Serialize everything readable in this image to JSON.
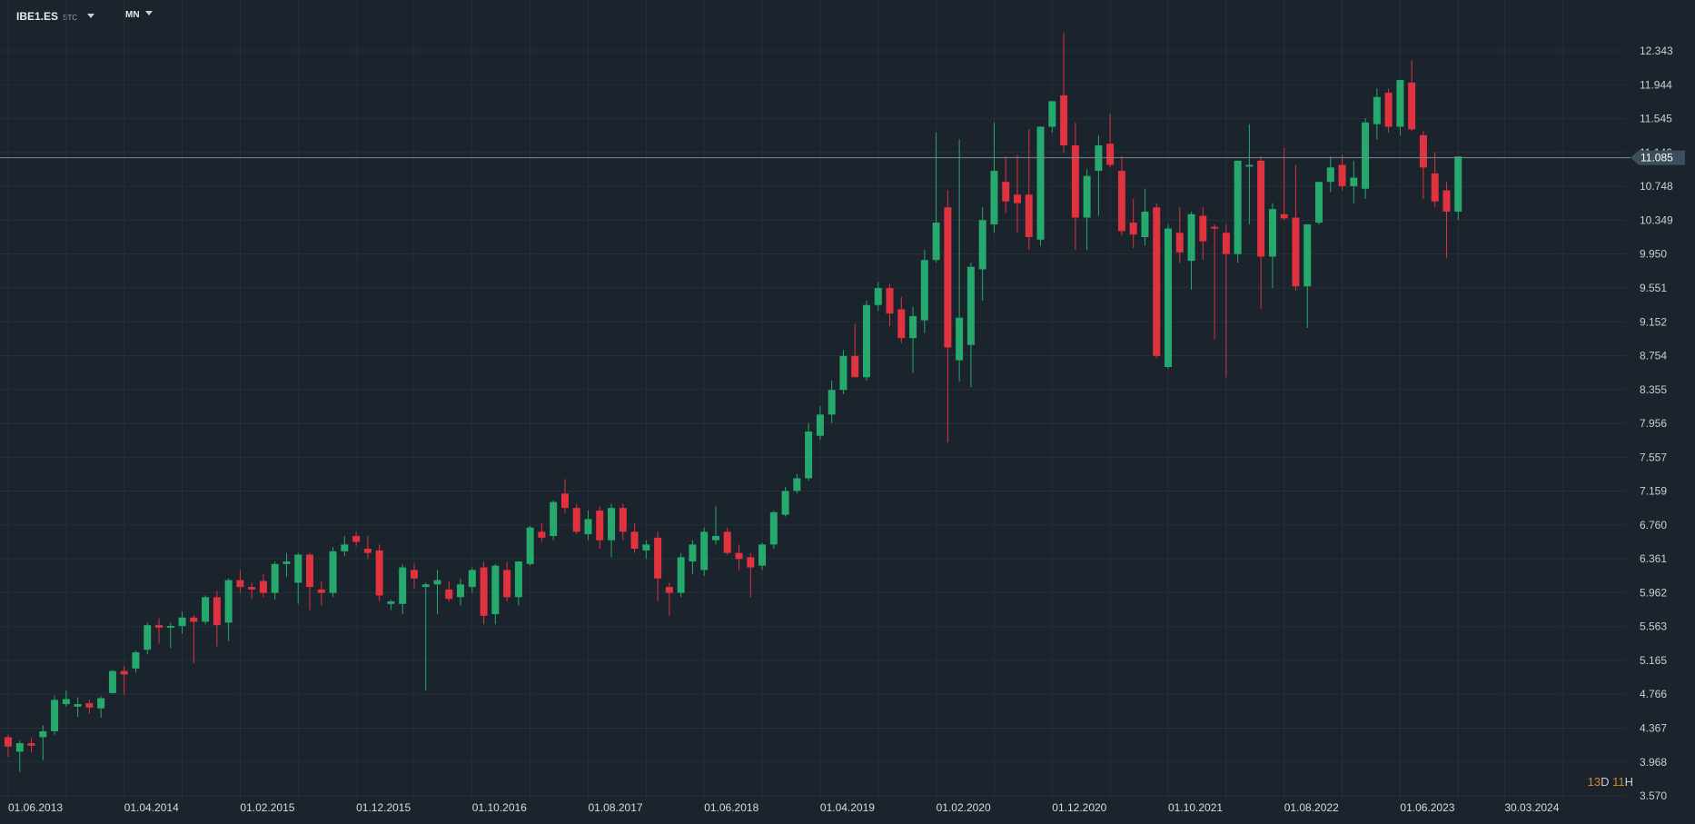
{
  "header": {
    "symbol": "IBE1.ES",
    "symbol_suffix": "STC",
    "timeframe": "MN"
  },
  "countdown": {
    "days": "13",
    "day_unit": "D",
    "hours": "11",
    "hour_unit": "H"
  },
  "colors": {
    "up": "#26a96c",
    "down": "#e0323f",
    "grid": "#253039",
    "background": "#1b232c"
  },
  "chart_data": {
    "type": "candlestick",
    "title": "",
    "xlabel": "",
    "ylabel": "",
    "x_ticks": [
      "01.06.2013",
      "01.04.2014",
      "01.02.2015",
      "01.12.2015",
      "01.10.2016",
      "01.08.2017",
      "01.06.2018",
      "01.04.2019",
      "01.02.2020",
      "01.12.2020",
      "01.10.2021",
      "01.08.2022",
      "01.06.2023",
      "30.03.2024"
    ],
    "y_ticks": [
      "12.343",
      "11.944",
      "11.545",
      "11.146",
      "10.748",
      "10.349",
      "9.950",
      "9.551",
      "9.152",
      "8.754",
      "8.355",
      "7.956",
      "7.557",
      "7.159",
      "6.760",
      "6.361",
      "5.962",
      "5.563",
      "5.165",
      "4.766",
      "4.367",
      "3.968",
      "3.570"
    ],
    "ylim": [
      3.57,
      12.343
    ],
    "current_price": "11.085",
    "current_price_value": 11.085,
    "start": "01.06.2013",
    "series": [
      {
        "date": "01.06.2013",
        "o": 4.26,
        "h": 4.29,
        "l": 4.03,
        "c": 4.15
      },
      {
        "date": "01.07.2013",
        "o": 4.09,
        "h": 4.22,
        "l": 3.85,
        "c": 4.19
      },
      {
        "date": "01.08.2013",
        "o": 4.19,
        "h": 4.25,
        "l": 4.08,
        "c": 4.16
      },
      {
        "date": "01.09.2013",
        "o": 4.26,
        "h": 4.4,
        "l": 3.99,
        "c": 4.33
      },
      {
        "date": "01.10.2013",
        "o": 4.33,
        "h": 4.75,
        "l": 4.29,
        "c": 4.7
      },
      {
        "date": "01.11.2013",
        "o": 4.65,
        "h": 4.81,
        "l": 4.62,
        "c": 4.71
      },
      {
        "date": "01.12.2013",
        "o": 4.62,
        "h": 4.73,
        "l": 4.5,
        "c": 4.65
      },
      {
        "date": "01.01.2014",
        "o": 4.66,
        "h": 4.7,
        "l": 4.54,
        "c": 4.61
      },
      {
        "date": "01.02.2014",
        "o": 4.6,
        "h": 4.74,
        "l": 4.49,
        "c": 4.72
      },
      {
        "date": "01.03.2014",
        "o": 4.78,
        "h": 5.05,
        "l": 4.77,
        "c": 5.04
      },
      {
        "date": "01.04.2014",
        "o": 5.04,
        "h": 5.1,
        "l": 4.76,
        "c": 5.0
      },
      {
        "date": "01.05.2014",
        "o": 5.07,
        "h": 5.28,
        "l": 5.02,
        "c": 5.26
      },
      {
        "date": "01.06.2014",
        "o": 5.29,
        "h": 5.61,
        "l": 5.24,
        "c": 5.58
      },
      {
        "date": "01.07.2014",
        "o": 5.58,
        "h": 5.66,
        "l": 5.36,
        "c": 5.55
      },
      {
        "date": "01.08.2014",
        "o": 5.55,
        "h": 5.61,
        "l": 5.31,
        "c": 5.57
      },
      {
        "date": "01.09.2014",
        "o": 5.57,
        "h": 5.74,
        "l": 5.48,
        "c": 5.67
      },
      {
        "date": "01.10.2014",
        "o": 5.67,
        "h": 5.7,
        "l": 5.13,
        "c": 5.62
      },
      {
        "date": "01.11.2014",
        "o": 5.62,
        "h": 5.93,
        "l": 5.59,
        "c": 5.91
      },
      {
        "date": "01.12.2014",
        "o": 5.91,
        "h": 5.98,
        "l": 5.33,
        "c": 5.58
      },
      {
        "date": "01.01.2015",
        "o": 5.61,
        "h": 6.13,
        "l": 5.39,
        "c": 6.11
      },
      {
        "date": "01.02.2015",
        "o": 6.11,
        "h": 6.23,
        "l": 5.96,
        "c": 6.03
      },
      {
        "date": "01.03.2015",
        "o": 6.03,
        "h": 6.08,
        "l": 5.89,
        "c": 6.0
      },
      {
        "date": "01.04.2015",
        "o": 6.1,
        "h": 6.18,
        "l": 5.91,
        "c": 5.96
      },
      {
        "date": "01.05.2015",
        "o": 5.96,
        "h": 6.33,
        "l": 5.88,
        "c": 6.3
      },
      {
        "date": "01.06.2015",
        "o": 6.3,
        "h": 6.43,
        "l": 6.15,
        "c": 6.33
      },
      {
        "date": "01.07.2015",
        "o": 6.08,
        "h": 6.43,
        "l": 5.83,
        "c": 6.41
      },
      {
        "date": "01.08.2015",
        "o": 6.41,
        "h": 6.43,
        "l": 5.76,
        "c": 6.03
      },
      {
        "date": "01.09.2015",
        "o": 6.0,
        "h": 6.1,
        "l": 5.81,
        "c": 5.96
      },
      {
        "date": "01.10.2015",
        "o": 5.96,
        "h": 6.5,
        "l": 5.91,
        "c": 6.45
      },
      {
        "date": "01.11.2015",
        "o": 6.45,
        "h": 6.63,
        "l": 6.39,
        "c": 6.53
      },
      {
        "date": "01.12.2015",
        "o": 6.63,
        "h": 6.68,
        "l": 6.51,
        "c": 6.56
      },
      {
        "date": "01.01.2016",
        "o": 6.48,
        "h": 6.63,
        "l": 6.36,
        "c": 6.43
      },
      {
        "date": "01.02.2016",
        "o": 6.46,
        "h": 6.53,
        "l": 5.86,
        "c": 5.93
      },
      {
        "date": "01.03.2016",
        "o": 5.83,
        "h": 5.88,
        "l": 5.76,
        "c": 5.86
      },
      {
        "date": "01.04.2016",
        "o": 5.83,
        "h": 6.3,
        "l": 5.71,
        "c": 6.26
      },
      {
        "date": "01.05.2016",
        "o": 6.23,
        "h": 6.3,
        "l": 6.01,
        "c": 6.13
      },
      {
        "date": "01.06.2016",
        "o": 6.03,
        "h": 6.08,
        "l": 4.81,
        "c": 6.06
      },
      {
        "date": "01.07.2016",
        "o": 6.06,
        "h": 6.23,
        "l": 5.71,
        "c": 6.11
      },
      {
        "date": "01.08.2016",
        "o": 6.0,
        "h": 6.1,
        "l": 5.86,
        "c": 5.89
      },
      {
        "date": "01.09.2016",
        "o": 5.91,
        "h": 6.13,
        "l": 5.81,
        "c": 6.06
      },
      {
        "date": "01.10.2016",
        "o": 6.03,
        "h": 6.26,
        "l": 5.96,
        "c": 6.23
      },
      {
        "date": "01.11.2016",
        "o": 6.26,
        "h": 6.33,
        "l": 5.59,
        "c": 5.69
      },
      {
        "date": "01.12.2016",
        "o": 5.71,
        "h": 6.3,
        "l": 5.59,
        "c": 6.28
      },
      {
        "date": "01.01.2017",
        "o": 6.23,
        "h": 6.33,
        "l": 5.86,
        "c": 5.91
      },
      {
        "date": "01.02.2017",
        "o": 5.91,
        "h": 6.3,
        "l": 5.81,
        "c": 6.33
      },
      {
        "date": "01.03.2017",
        "o": 6.3,
        "h": 6.75,
        "l": 6.28,
        "c": 6.73
      },
      {
        "date": "01.04.2017",
        "o": 6.68,
        "h": 6.78,
        "l": 6.56,
        "c": 6.61
      },
      {
        "date": "01.05.2017",
        "o": 6.63,
        "h": 7.05,
        "l": 6.58,
        "c": 7.03
      },
      {
        "date": "01.06.2017",
        "o": 7.13,
        "h": 7.3,
        "l": 6.9,
        "c": 6.96
      },
      {
        "date": "01.07.2017",
        "o": 6.96,
        "h": 7.01,
        "l": 6.65,
        "c": 6.68
      },
      {
        "date": "01.08.2017",
        "o": 6.65,
        "h": 6.93,
        "l": 6.58,
        "c": 6.83
      },
      {
        "date": "01.09.2017",
        "o": 6.93,
        "h": 6.98,
        "l": 6.48,
        "c": 6.58
      },
      {
        "date": "01.10.2017",
        "o": 6.58,
        "h": 7.01,
        "l": 6.38,
        "c": 6.96
      },
      {
        "date": "01.11.2017",
        "o": 6.96,
        "h": 7.01,
        "l": 6.58,
        "c": 6.68
      },
      {
        "date": "01.12.2017",
        "o": 6.68,
        "h": 6.78,
        "l": 6.43,
        "c": 6.48
      },
      {
        "date": "01.01.2018",
        "o": 6.46,
        "h": 6.58,
        "l": 6.36,
        "c": 6.53
      },
      {
        "date": "01.02.2018",
        "o": 6.61,
        "h": 6.68,
        "l": 5.86,
        "c": 6.13
      },
      {
        "date": "01.03.2018",
        "o": 6.03,
        "h": 6.08,
        "l": 5.69,
        "c": 5.96
      },
      {
        "date": "01.04.2018",
        "o": 5.96,
        "h": 6.43,
        "l": 5.91,
        "c": 6.38
      },
      {
        "date": "01.05.2018",
        "o": 6.33,
        "h": 6.58,
        "l": 6.18,
        "c": 6.53
      },
      {
        "date": "01.06.2018",
        "o": 6.23,
        "h": 6.73,
        "l": 6.16,
        "c": 6.68
      },
      {
        "date": "01.07.2018",
        "o": 6.58,
        "h": 6.98,
        "l": 6.53,
        "c": 6.63
      },
      {
        "date": "01.08.2018",
        "o": 6.68,
        "h": 6.73,
        "l": 6.41,
        "c": 6.43
      },
      {
        "date": "01.09.2018",
        "o": 6.43,
        "h": 6.53,
        "l": 6.23,
        "c": 6.36
      },
      {
        "date": "01.10.2018",
        "o": 6.38,
        "h": 6.43,
        "l": 5.91,
        "c": 6.26
      },
      {
        "date": "01.11.2018",
        "o": 6.28,
        "h": 6.55,
        "l": 6.23,
        "c": 6.53
      },
      {
        "date": "01.12.2018",
        "o": 6.53,
        "h": 6.93,
        "l": 6.48,
        "c": 6.91
      },
      {
        "date": "01.01.2019",
        "o": 6.88,
        "h": 7.21,
        "l": 6.86,
        "c": 7.16
      },
      {
        "date": "01.02.2019",
        "o": 7.16,
        "h": 7.36,
        "l": 7.13,
        "c": 7.31
      },
      {
        "date": "01.03.2019",
        "o": 7.31,
        "h": 7.96,
        "l": 7.28,
        "c": 7.86
      },
      {
        "date": "01.04.2019",
        "o": 7.81,
        "h": 8.16,
        "l": 7.76,
        "c": 8.06
      },
      {
        "date": "01.05.2019",
        "o": 8.06,
        "h": 8.46,
        "l": 7.96,
        "c": 8.35
      },
      {
        "date": "01.06.2019",
        "o": 8.35,
        "h": 8.82,
        "l": 8.3,
        "c": 8.75
      },
      {
        "date": "01.07.2019",
        "o": 8.75,
        "h": 9.13,
        "l": 8.5,
        "c": 8.5
      },
      {
        "date": "01.08.2019",
        "o": 8.5,
        "h": 9.4,
        "l": 8.46,
        "c": 9.35
      },
      {
        "date": "01.09.2019",
        "o": 9.35,
        "h": 9.62,
        "l": 9.28,
        "c": 9.55
      },
      {
        "date": "01.10.2019",
        "o": 9.55,
        "h": 9.6,
        "l": 9.1,
        "c": 9.25
      },
      {
        "date": "01.11.2019",
        "o": 9.3,
        "h": 9.45,
        "l": 8.9,
        "c": 8.96
      },
      {
        "date": "01.12.2019",
        "o": 8.96,
        "h": 9.33,
        "l": 8.55,
        "c": 9.22
      },
      {
        "date": "01.01.2020",
        "o": 9.17,
        "h": 10.0,
        "l": 9.02,
        "c": 9.88
      },
      {
        "date": "01.02.2020",
        "o": 9.88,
        "h": 11.38,
        "l": 9.85,
        "c": 10.32
      },
      {
        "date": "01.03.2020",
        "o": 10.5,
        "h": 10.7,
        "l": 7.73,
        "c": 8.85
      },
      {
        "date": "01.04.2020",
        "o": 8.7,
        "h": 11.3,
        "l": 8.45,
        "c": 9.2
      },
      {
        "date": "01.05.2020",
        "o": 8.88,
        "h": 9.85,
        "l": 8.38,
        "c": 9.8
      },
      {
        "date": "01.06.2020",
        "o": 9.77,
        "h": 10.5,
        "l": 9.4,
        "c": 10.35
      },
      {
        "date": "01.07.2020",
        "o": 10.3,
        "h": 11.5,
        "l": 10.2,
        "c": 10.93
      },
      {
        "date": "01.08.2020",
        "o": 10.8,
        "h": 11.1,
        "l": 10.43,
        "c": 10.57
      },
      {
        "date": "01.09.2020",
        "o": 10.65,
        "h": 11.12,
        "l": 10.2,
        "c": 10.55
      },
      {
        "date": "01.10.2020",
        "o": 10.65,
        "h": 11.42,
        "l": 10.0,
        "c": 10.15
      },
      {
        "date": "01.11.2020",
        "o": 10.12,
        "h": 11.42,
        "l": 10.05,
        "c": 11.45
      },
      {
        "date": "01.12.2020",
        "o": 11.45,
        "h": 11.75,
        "l": 11.38,
        "c": 11.75
      },
      {
        "date": "01.01.2021",
        "o": 11.82,
        "h": 12.55,
        "l": 11.14,
        "c": 11.23
      },
      {
        "date": "01.02.2021",
        "o": 11.23,
        "h": 11.5,
        "l": 10.0,
        "c": 10.38
      },
      {
        "date": "01.03.2021",
        "o": 10.38,
        "h": 10.95,
        "l": 10.0,
        "c": 10.87
      },
      {
        "date": "01.04.2021",
        "o": 10.93,
        "h": 11.35,
        "l": 10.4,
        "c": 11.23
      },
      {
        "date": "01.05.2021",
        "o": 11.25,
        "h": 11.6,
        "l": 10.97,
        "c": 11.0
      },
      {
        "date": "01.06.2021",
        "o": 10.93,
        "h": 11.1,
        "l": 10.17,
        "c": 10.22
      },
      {
        "date": "01.07.2021",
        "o": 10.32,
        "h": 10.6,
        "l": 10.02,
        "c": 10.18
      },
      {
        "date": "01.08.2021",
        "o": 10.15,
        "h": 10.72,
        "l": 10.05,
        "c": 10.45
      },
      {
        "date": "01.09.2021",
        "o": 10.5,
        "h": 10.55,
        "l": 8.72,
        "c": 8.75
      },
      {
        "date": "01.10.2021",
        "o": 8.62,
        "h": 10.3,
        "l": 8.6,
        "c": 10.25
      },
      {
        "date": "01.11.2021",
        "o": 10.2,
        "h": 10.5,
        "l": 9.85,
        "c": 9.97
      },
      {
        "date": "01.12.2021",
        "o": 9.87,
        "h": 10.45,
        "l": 9.53,
        "c": 10.42
      },
      {
        "date": "01.01.2022",
        "o": 10.4,
        "h": 10.5,
        "l": 9.88,
        "c": 10.1
      },
      {
        "date": "01.02.2022",
        "o": 10.27,
        "h": 10.3,
        "l": 8.95,
        "c": 10.25
      },
      {
        "date": "01.03.2022",
        "o": 10.2,
        "h": 10.3,
        "l": 8.5,
        "c": 9.95
      },
      {
        "date": "01.04.2022",
        "o": 9.95,
        "h": 11.05,
        "l": 9.85,
        "c": 11.05
      },
      {
        "date": "01.05.2022",
        "o": 10.98,
        "h": 11.48,
        "l": 10.3,
        "c": 11.0
      },
      {
        "date": "01.06.2022",
        "o": 11.05,
        "h": 11.1,
        "l": 9.3,
        "c": 9.92
      },
      {
        "date": "01.07.2022",
        "o": 9.92,
        "h": 10.55,
        "l": 9.55,
        "c": 10.48
      },
      {
        "date": "01.08.2022",
        "o": 10.42,
        "h": 11.2,
        "l": 10.35,
        "c": 10.37
      },
      {
        "date": "01.09.2022",
        "o": 10.38,
        "h": 11.0,
        "l": 9.52,
        "c": 9.57
      },
      {
        "date": "01.10.2022",
        "o": 9.57,
        "h": 10.3,
        "l": 9.08,
        "c": 10.3
      },
      {
        "date": "01.11.2022",
        "o": 10.32,
        "h": 10.8,
        "l": 10.3,
        "c": 10.8
      },
      {
        "date": "01.12.2022",
        "o": 10.8,
        "h": 11.1,
        "l": 10.68,
        "c": 10.97
      },
      {
        "date": "01.01.2023",
        "o": 11.0,
        "h": 11.12,
        "l": 10.7,
        "c": 10.75
      },
      {
        "date": "01.02.2023",
        "o": 10.75,
        "h": 11.05,
        "l": 10.55,
        "c": 10.85
      },
      {
        "date": "01.03.2023",
        "o": 10.72,
        "h": 11.55,
        "l": 10.6,
        "c": 11.5
      },
      {
        "date": "01.04.2023",
        "o": 11.48,
        "h": 11.9,
        "l": 11.3,
        "c": 11.8
      },
      {
        "date": "01.05.2023",
        "o": 11.85,
        "h": 11.9,
        "l": 11.38,
        "c": 11.45
      },
      {
        "date": "01.06.2023",
        "o": 11.45,
        "h": 12.0,
        "l": 11.35,
        "c": 12.0
      },
      {
        "date": "01.07.2023",
        "o": 11.97,
        "h": 12.23,
        "l": 11.4,
        "c": 11.42
      },
      {
        "date": "01.08.2023",
        "o": 11.35,
        "h": 11.4,
        "l": 10.6,
        "c": 10.97
      },
      {
        "date": "01.09.2023",
        "o": 10.9,
        "h": 11.15,
        "l": 10.5,
        "c": 10.57
      },
      {
        "date": "01.10.2023",
        "o": 10.7,
        "h": 10.8,
        "l": 9.9,
        "c": 10.45
      },
      {
        "date": "01.11.2023",
        "o": 10.45,
        "h": 11.1,
        "l": 10.35,
        "c": 11.1
      }
    ]
  }
}
